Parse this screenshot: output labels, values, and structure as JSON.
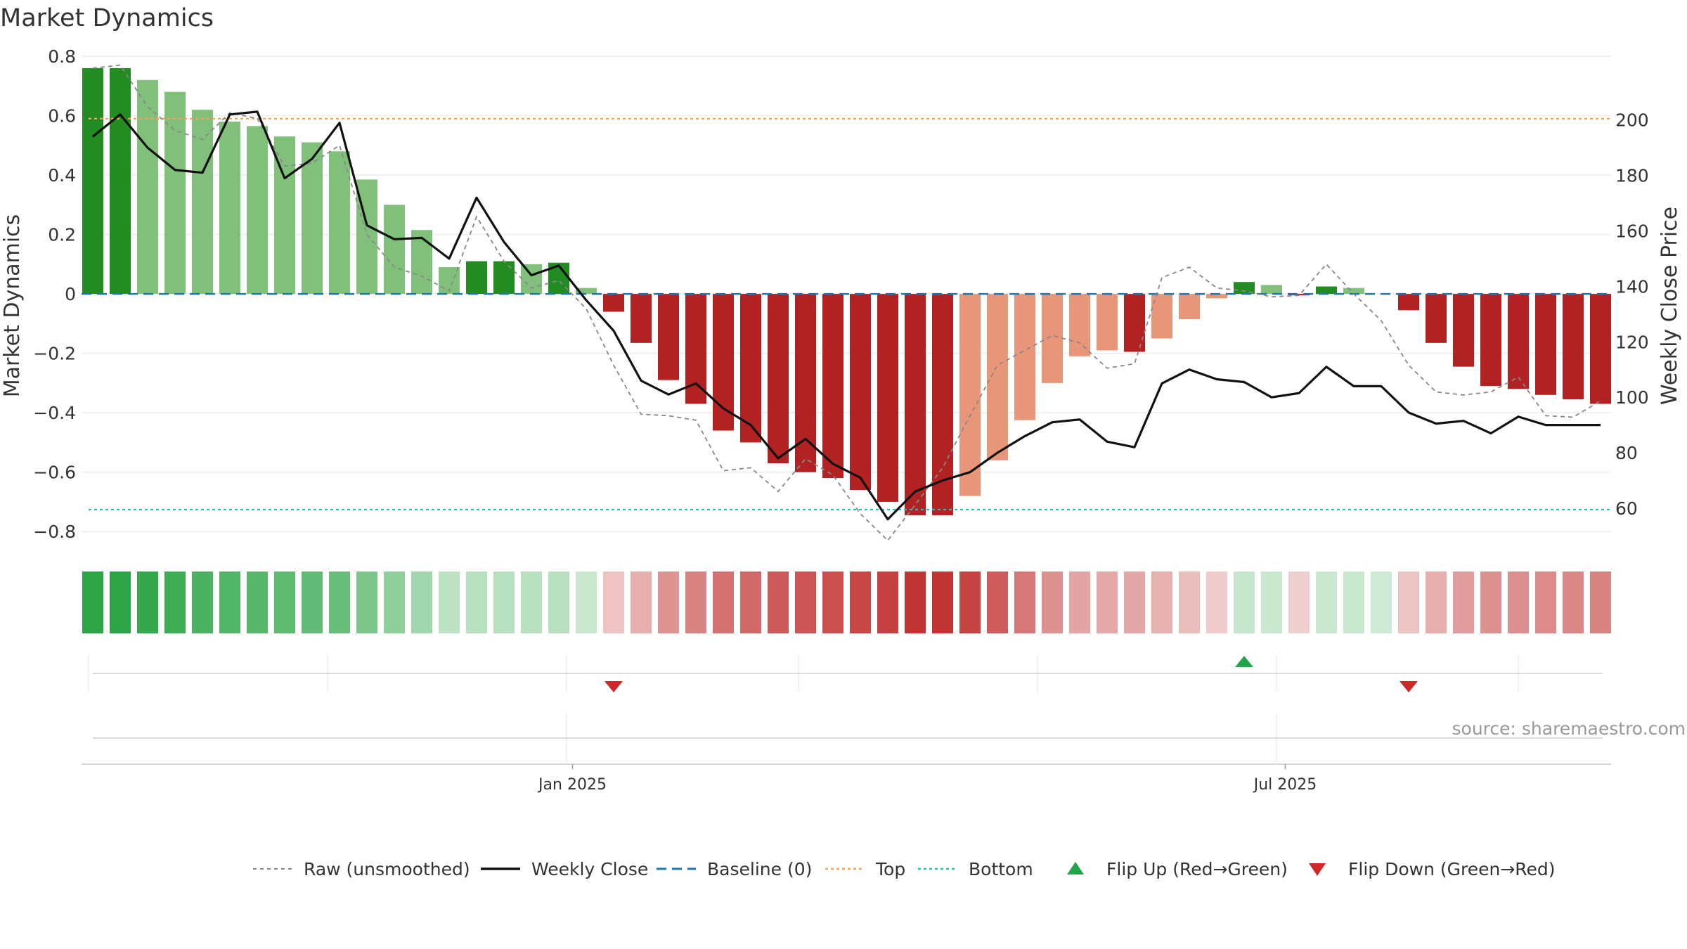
{
  "title": "Market Dynamics",
  "source": "source: sharemaestro.com",
  "chart_data": {
    "type": "bar",
    "left_axis": {
      "label": "Market Dynamics",
      "ylim": [
        -0.88,
        0.8
      ],
      "ticks": [
        {
          "v": 0.8,
          "t": "0.8"
        },
        {
          "v": 0.6,
          "t": "0.6"
        },
        {
          "v": 0.4,
          "t": "0.4"
        },
        {
          "v": 0.2,
          "t": "0.2"
        },
        {
          "v": 0,
          "t": "0"
        },
        {
          "v": -0.2,
          "t": "−0.2"
        },
        {
          "v": -0.4,
          "t": "−0.4"
        },
        {
          "v": -0.6,
          "t": "−0.6"
        },
        {
          "v": -0.8,
          "t": "−0.8"
        }
      ]
    },
    "right_axis": {
      "label": "Weekly Close Price",
      "ylim": [
        43,
        223
      ],
      "ticks": [
        {
          "v": 200,
          "t": "200"
        },
        {
          "v": 180,
          "t": "180"
        },
        {
          "v": 160,
          "t": "160"
        },
        {
          "v": 140,
          "t": "140"
        },
        {
          "v": 120,
          "t": "120"
        },
        {
          "v": 100,
          "t": "100"
        },
        {
          "v": 80,
          "t": "80"
        },
        {
          "v": 60,
          "t": "60"
        }
      ]
    },
    "x_ticks": [
      {
        "index": 17.5,
        "label": "Jan 2025"
      },
      {
        "index": 43.5,
        "label": "Jul 2025"
      }
    ],
    "series": [
      {
        "name": "Market Dynamics",
        "kind": "bar",
        "values": [
          0.76,
          0.76,
          0.72,
          0.68,
          0.62,
          0.58,
          0.565,
          0.53,
          0.51,
          0.48,
          0.385,
          0.3,
          0.215,
          0.09,
          0.11,
          0.11,
          0.1,
          0.105,
          0.02,
          -0.06,
          -0.165,
          -0.29,
          -0.37,
          -0.46,
          -0.5,
          -0.57,
          -0.6,
          -0.62,
          -0.66,
          -0.7,
          -0.745,
          -0.745,
          -0.68,
          -0.56,
          -0.425,
          -0.3,
          -0.21,
          -0.19,
          -0.195,
          -0.15,
          -0.085,
          -0.015,
          0.04,
          0.03,
          -0.005,
          0.025,
          0.02,
          0.0,
          -0.055,
          -0.165,
          -0.245,
          -0.31,
          -0.32,
          -0.34,
          -0.355,
          -0.37
        ]
      },
      {
        "name": "Raw (unsmoothed)",
        "kind": "line",
        "values": [
          0.76,
          0.77,
          0.63,
          0.55,
          0.52,
          0.61,
          0.59,
          0.43,
          0.44,
          0.5,
          0.2,
          0.09,
          0.06,
          0.01,
          0.26,
          0.11,
          0.02,
          0.045,
          -0.05,
          -0.24,
          -0.405,
          -0.41,
          -0.425,
          -0.595,
          -0.585,
          -0.665,
          -0.555,
          -0.61,
          -0.74,
          -0.83,
          -0.71,
          -0.585,
          -0.41,
          -0.24,
          -0.19,
          -0.14,
          -0.165,
          -0.25,
          -0.235,
          0.055,
          0.09,
          0.02,
          0.01,
          -0.01,
          -0.005,
          0.1,
          0.0,
          -0.09,
          -0.24,
          -0.33,
          -0.34,
          -0.33,
          -0.28,
          -0.41,
          -0.415,
          -0.36
        ]
      },
      {
        "name": "Weekly Close",
        "kind": "line",
        "values": [
          194,
          202,
          190,
          182,
          181,
          202,
          203,
          179,
          186,
          199,
          162,
          157,
          157.5,
          150,
          172,
          156,
          144,
          147.5,
          135,
          124,
          106,
          101,
          105,
          96,
          90,
          78,
          85,
          76,
          71,
          56,
          66,
          70,
          73,
          80,
          86,
          91,
          92,
          84,
          82,
          105,
          110,
          106.5,
          105.5,
          100,
          101.5,
          111,
          104,
          104,
          94.5,
          90.5,
          91.5,
          87,
          93,
          90,
          90,
          90
        ]
      },
      {
        "name": "Baseline (0)",
        "kind": "hline",
        "axis": "left",
        "value": 0
      },
      {
        "name": "Top",
        "kind": "hline",
        "axis": "right",
        "value": 200.5
      },
      {
        "name": "Bottom",
        "kind": "hline",
        "axis": "right",
        "value": 59.5
      },
      {
        "name": "Flip Up (Red→Green)",
        "kind": "marker",
        "shape": "triangle-up",
        "indices": [
          42
        ]
      },
      {
        "name": "Flip Down (Green→Red)",
        "kind": "marker",
        "shape": "triangle-down",
        "indices": [
          19,
          48
        ]
      }
    ],
    "grid": true,
    "legend_position": "bottom",
    "colors": {
      "strong_green": "#228b22",
      "light_green": "#80c07b",
      "strong_red": "#b22222",
      "light_red": "#e8967a",
      "raw": "#888888",
      "close": "#111111",
      "baseline": "#1f77b4",
      "top": "#f4a460",
      "bottom": "#20c0c8",
      "flip_up": "#22a44a",
      "flip_down": "#d02828"
    }
  }
}
